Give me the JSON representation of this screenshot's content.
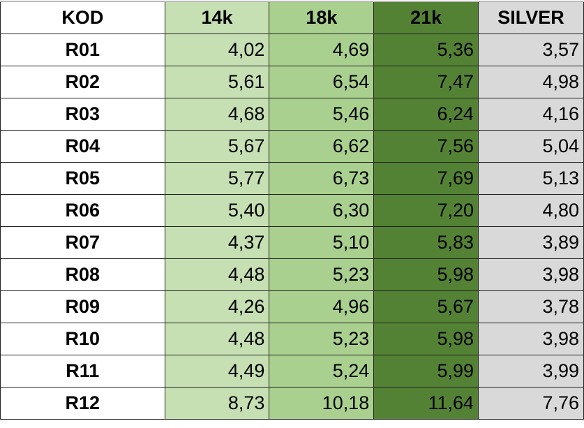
{
  "headers": [
    "KOD",
    "14k",
    "18k",
    "21k",
    "SILVER"
  ],
  "colors": {
    "14k": "#c6e0b4",
    "18k": "#a9d08e",
    "21k": "#548235",
    "SILVER": "#d9d9d9"
  },
  "rows": [
    [
      "R01",
      "4,02",
      "4,69",
      "5,36",
      "3,57"
    ],
    [
      "R02",
      "5,61",
      "6,54",
      "7,47",
      "4,98"
    ],
    [
      "R03",
      "4,68",
      "5,46",
      "6,24",
      "4,16"
    ],
    [
      "R04",
      "5,67",
      "6,62",
      "7,56",
      "5,04"
    ],
    [
      "R05",
      "5,77",
      "6,73",
      "7,69",
      "5,13"
    ],
    [
      "R06",
      "5,40",
      "6,30",
      "7,20",
      "4,80"
    ],
    [
      "R07",
      "4,37",
      "5,10",
      "5,83",
      "3,89"
    ],
    [
      "R08",
      "4,48",
      "5,23",
      "5,98",
      "3,98"
    ],
    [
      "R09",
      "4,26",
      "4,96",
      "5,67",
      "3,78"
    ],
    [
      "R10",
      "4,48",
      "5,23",
      "5,98",
      "3,98"
    ],
    [
      "R11",
      "4,49",
      "5,24",
      "5,99",
      "3,99"
    ],
    [
      "R12",
      "8,73",
      "10,18",
      "11,64",
      "7,76"
    ]
  ]
}
